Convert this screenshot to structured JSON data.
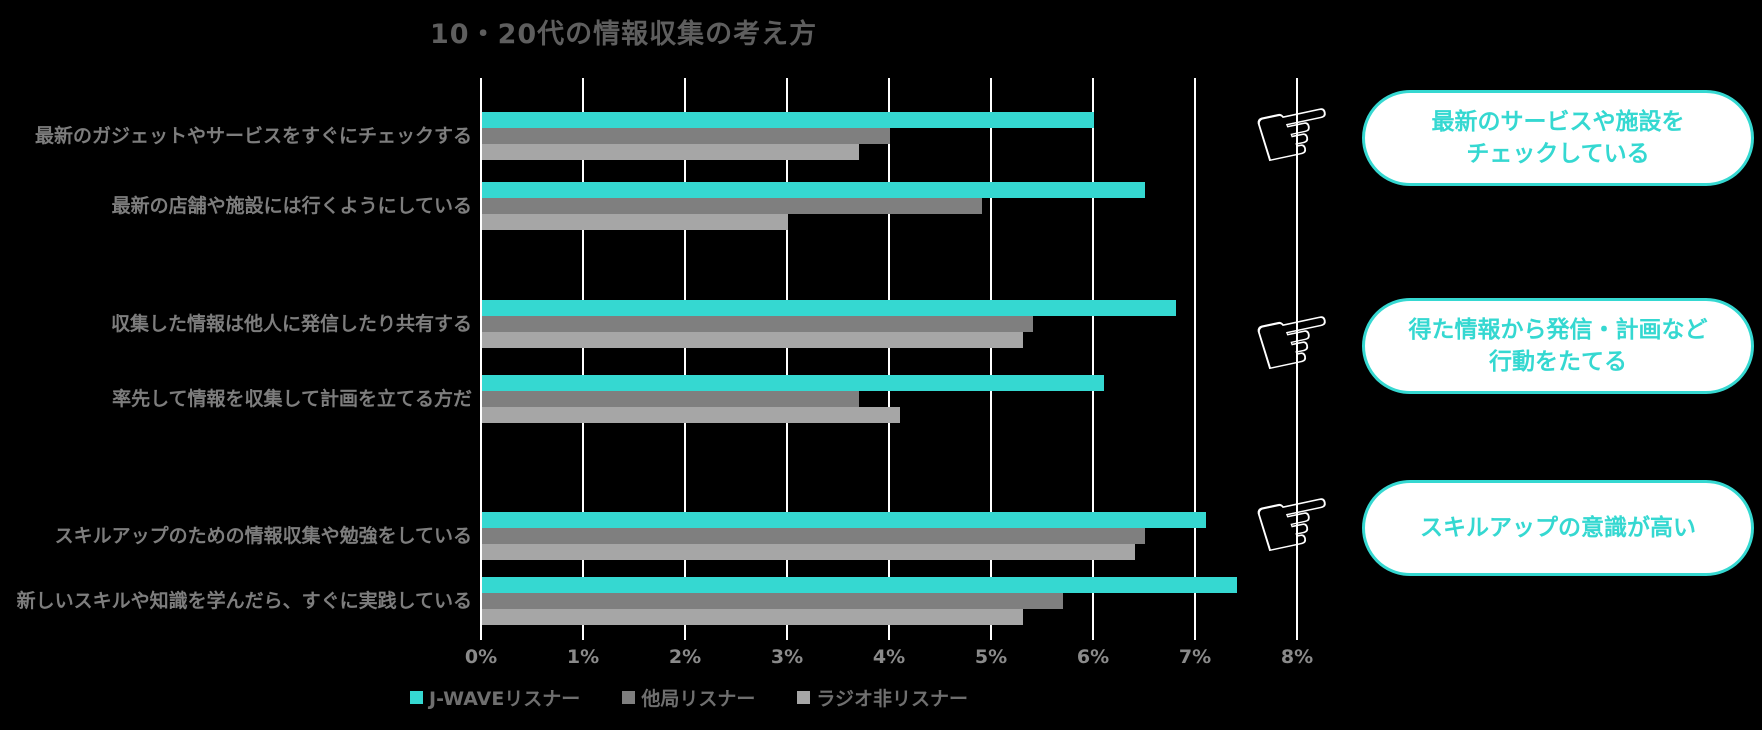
{
  "title": "10・20代の情報収集の考え方",
  "chart_data": {
    "type": "bar",
    "orientation": "horizontal",
    "title": "10・20代の情報収集の考え方",
    "xlabel": "",
    "ylabel": "",
    "xlim": [
      0,
      8
    ],
    "x_ticks": [
      "0%",
      "1%",
      "2%",
      "3%",
      "4%",
      "5%",
      "6%",
      "7%",
      "8%"
    ],
    "grid": true,
    "legend_position": "bottom",
    "categories": [
      "最新のガジェットやサービスをすぐにチェックする",
      "最新の店舗や施設には行くようにしている",
      "収集した情報は他人に発信したり共有する",
      "率先して情報を収集して計画を立てる方だ",
      "スキルアップのための情報収集や勉強をしている",
      "新しいスキルや知識を学んだら、すぐに実践している"
    ],
    "series": [
      {
        "name": "J-WAVEリスナー",
        "color": "#35D8D1",
        "values": [
          6.0,
          6.5,
          6.8,
          6.1,
          7.1,
          7.4
        ]
      },
      {
        "name": "他局リスナー",
        "color": "#7F7F7F",
        "values": [
          4.0,
          4.9,
          5.4,
          3.7,
          6.5,
          5.7
        ]
      },
      {
        "name": "ラジオ非リスナー",
        "color": "#A6A6A6",
        "values": [
          3.7,
          3.0,
          5.3,
          4.1,
          6.4,
          5.3
        ]
      }
    ]
  },
  "callouts": [
    {
      "lines": [
        "最新のサービスや施設を",
        "チェックしている"
      ]
    },
    {
      "lines": [
        "得た情報から発信・計画など",
        "行動をたてる"
      ]
    },
    {
      "lines": [
        "スキルアップの意識が高い"
      ]
    }
  ],
  "icons": {
    "pointing_hand": "☞"
  },
  "colors": {
    "background": "#000000",
    "gridline": "#FFFFFF",
    "title_text": "#5E5E5E",
    "category_text": "#7D7D7D",
    "tick_text": "#8A8A8A",
    "legend_text": "#6F6F6F",
    "accent_cyan": "#35D8D1",
    "series_dark_gray": "#7F7F7F",
    "series_light_gray": "#A6A6A6",
    "callout_background": "#FFFFFF"
  }
}
